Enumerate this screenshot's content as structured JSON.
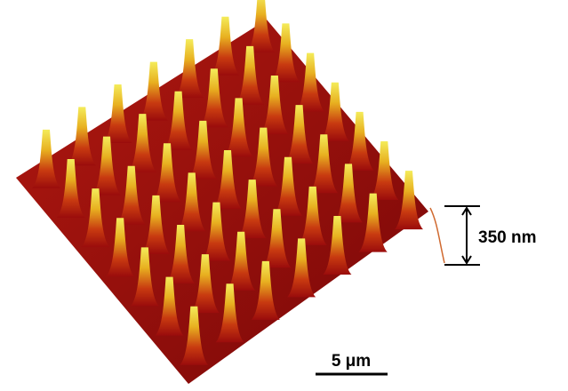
{
  "annotations": {
    "height_scale": "350 nm",
    "length_scale": "5 μm"
  }
}
